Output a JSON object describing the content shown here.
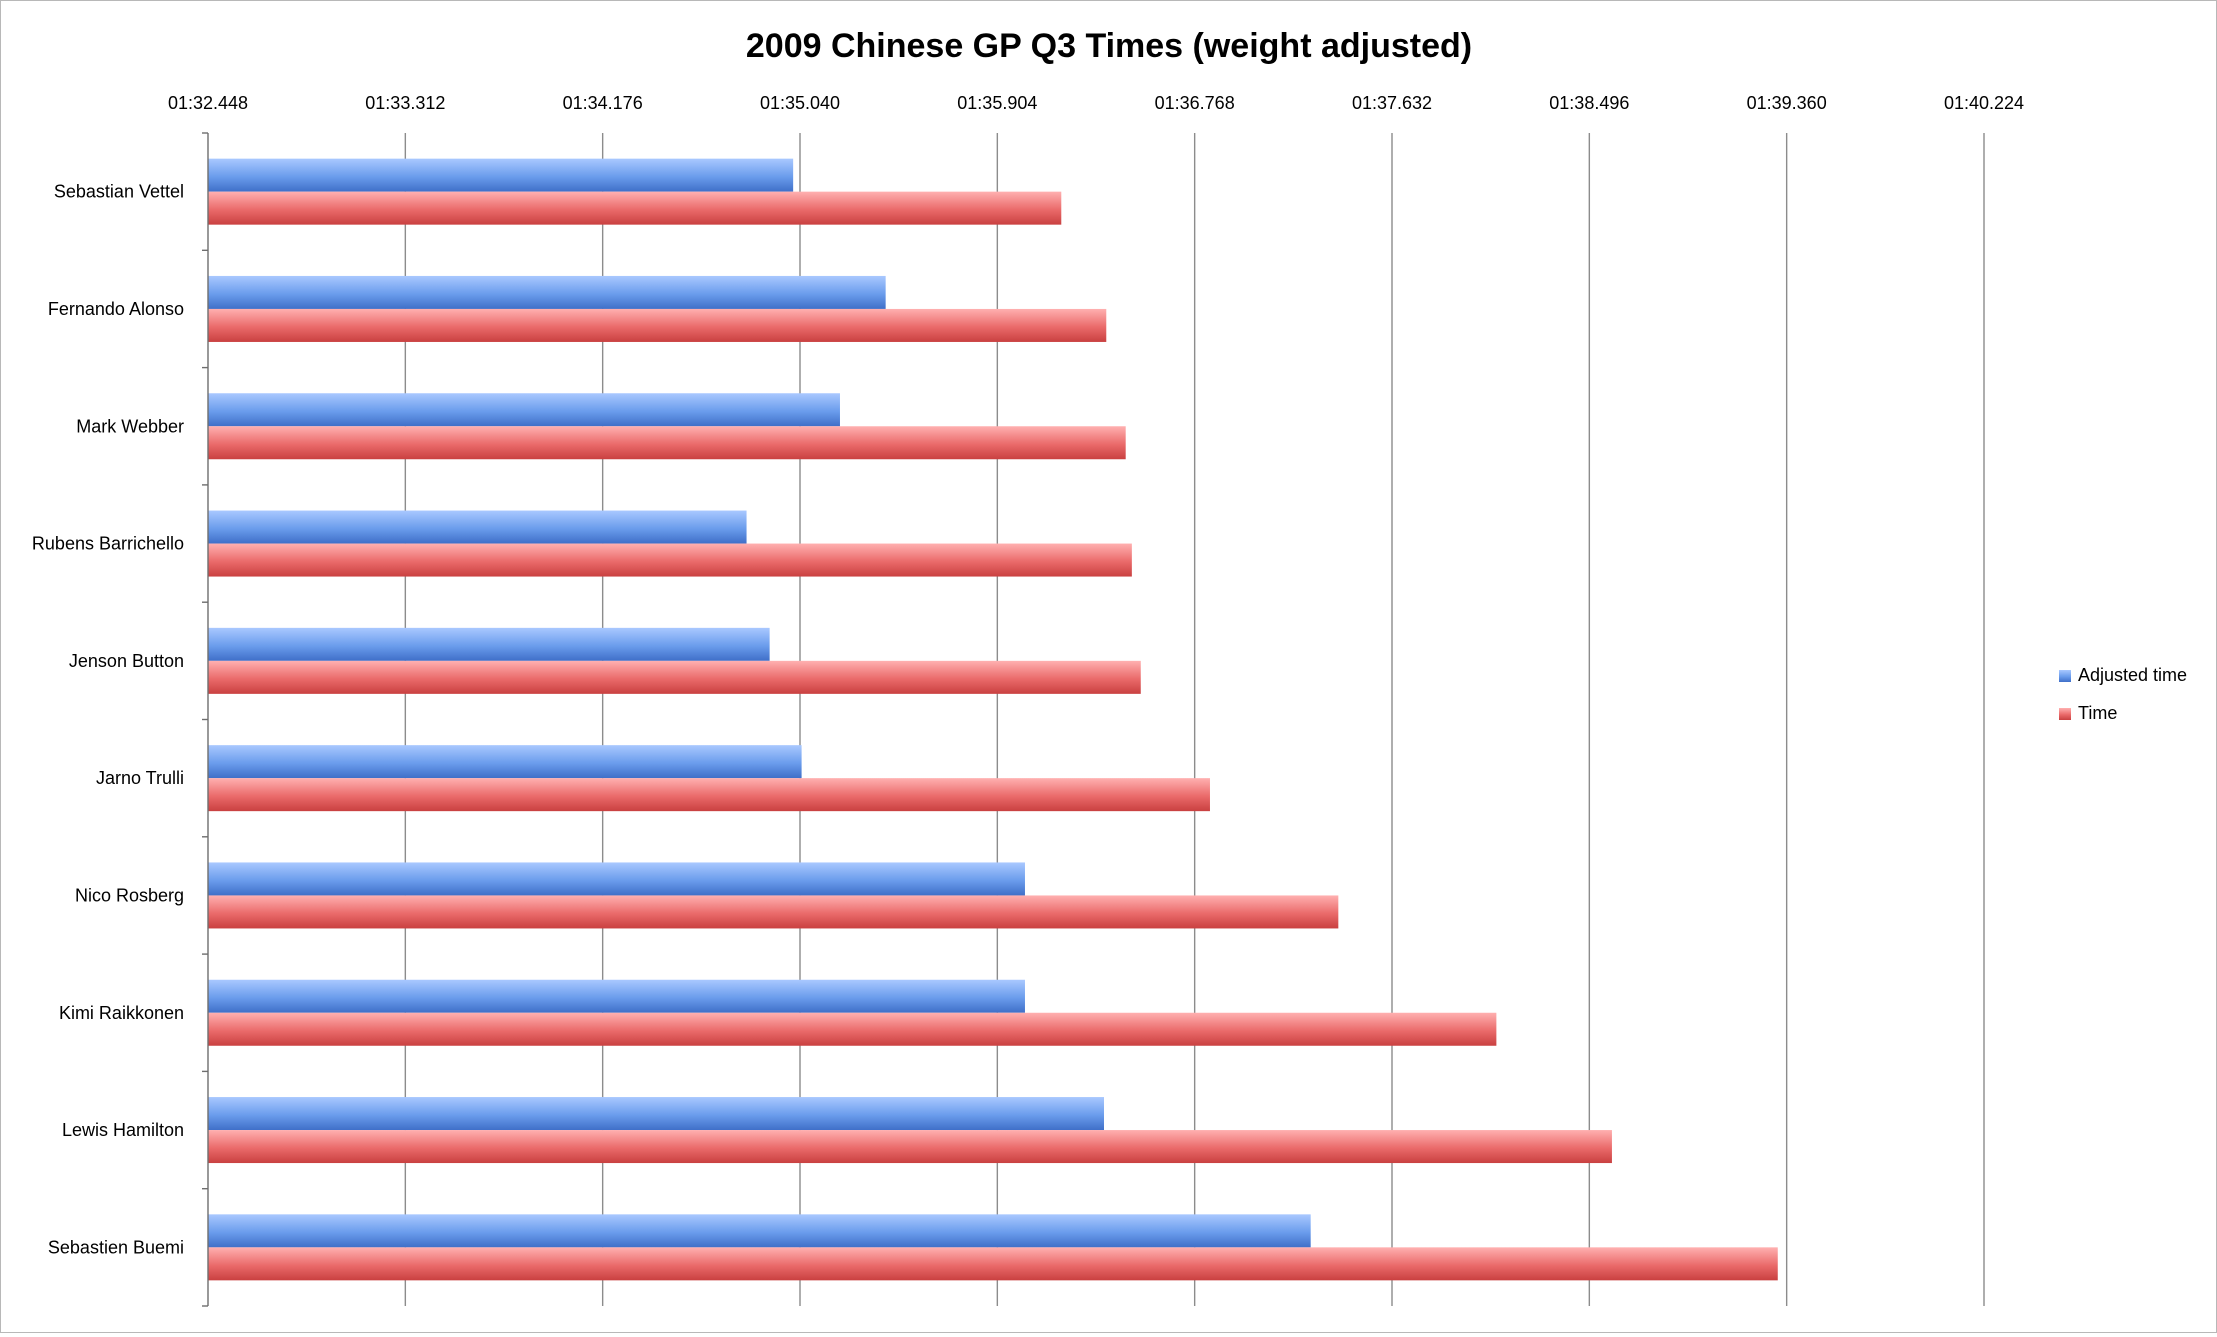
{
  "chart_data": {
    "type": "bar",
    "orientation": "horizontal",
    "title": "2009 Chinese GP Q3 Times (weight adjusted)",
    "xlabel": "",
    "ylabel": "",
    "x_axis_position": "top",
    "xlim": [
      "01:32.448",
      "01:40.224"
    ],
    "x_ticks": [
      "01:32.448",
      "01:33.312",
      "01:34.176",
      "01:35.040",
      "01:35.904",
      "01:36.768",
      "01:37.632",
      "01:38.496",
      "01:39.360",
      "01:40.224"
    ],
    "grid": "vertical",
    "legend_position": "right",
    "categories": [
      "Sebastian Vettel",
      "Fernando Alonso",
      "Mark Webber",
      "Rubens Barrichello",
      "Jenson Button",
      "Jarno Trulli",
      "Nico Rosberg",
      "Kimi Raikkonen",
      "Lewis Hamilton",
      "Sebastien Buemi"
    ],
    "series": [
      {
        "name": "Adjusted time",
        "color": "#5a8fe0",
        "values": [
          "01:35.010",
          "01:35.415",
          "01:35.215",
          "01:34.806",
          "01:34.907",
          "01:35.047",
          "01:36.025",
          "01:36.025",
          "01:36.371",
          "01:37.276"
        ]
      },
      {
        "name": "Time",
        "color": "#e05a5a",
        "values": [
          "01:36.184",
          "01:36.381",
          "01:36.466",
          "01:36.493",
          "01:36.532",
          "01:36.835",
          "01:37.397",
          "01:38.089",
          "01:38.595",
          "01:39.321"
        ]
      }
    ]
  }
}
